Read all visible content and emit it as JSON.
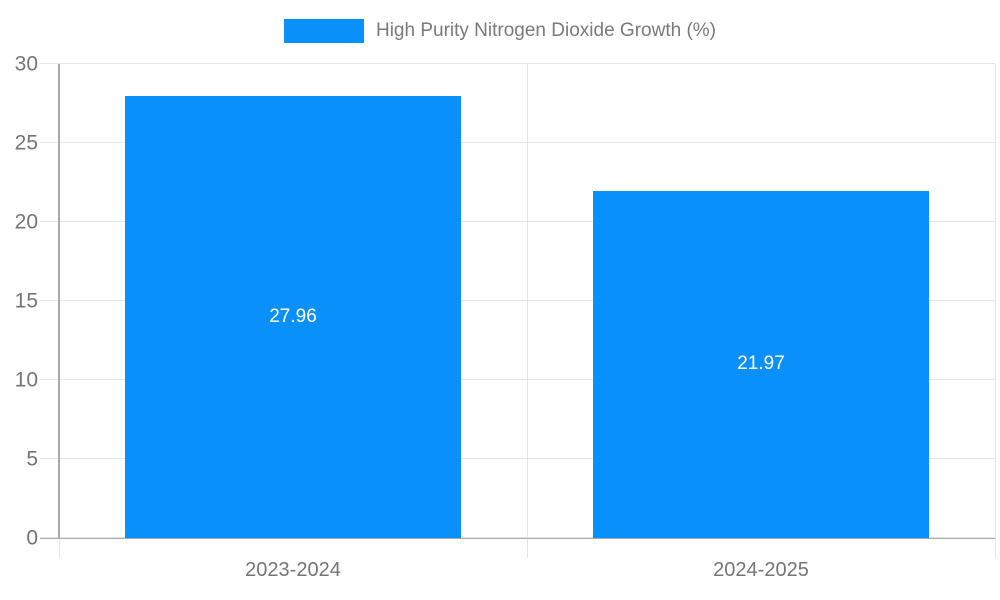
{
  "chart_data": {
    "type": "bar",
    "title": "High Purity Nitrogen Dioxide Growth (%)",
    "categories": [
      "2023-2024",
      "2024-2025"
    ],
    "values": [
      27.96,
      21.97
    ],
    "value_labels": [
      "27.96",
      "21.97"
    ],
    "xlabel": "",
    "ylabel": "",
    "ylim": [
      0,
      30
    ],
    "yticks": [
      0,
      5,
      10,
      15,
      20,
      25,
      30
    ],
    "grid": true,
    "legend_position": "top-center",
    "bar_width_pct": 36,
    "colors": {
      "bar": "#0990fa",
      "bar_value_label": "#ffffff",
      "axis_text": "#757575",
      "legend_text": "#7a7a7a",
      "gridline": "#e5e5e5",
      "axis_line": "#a9a9a9",
      "background": "#ffffff"
    }
  }
}
